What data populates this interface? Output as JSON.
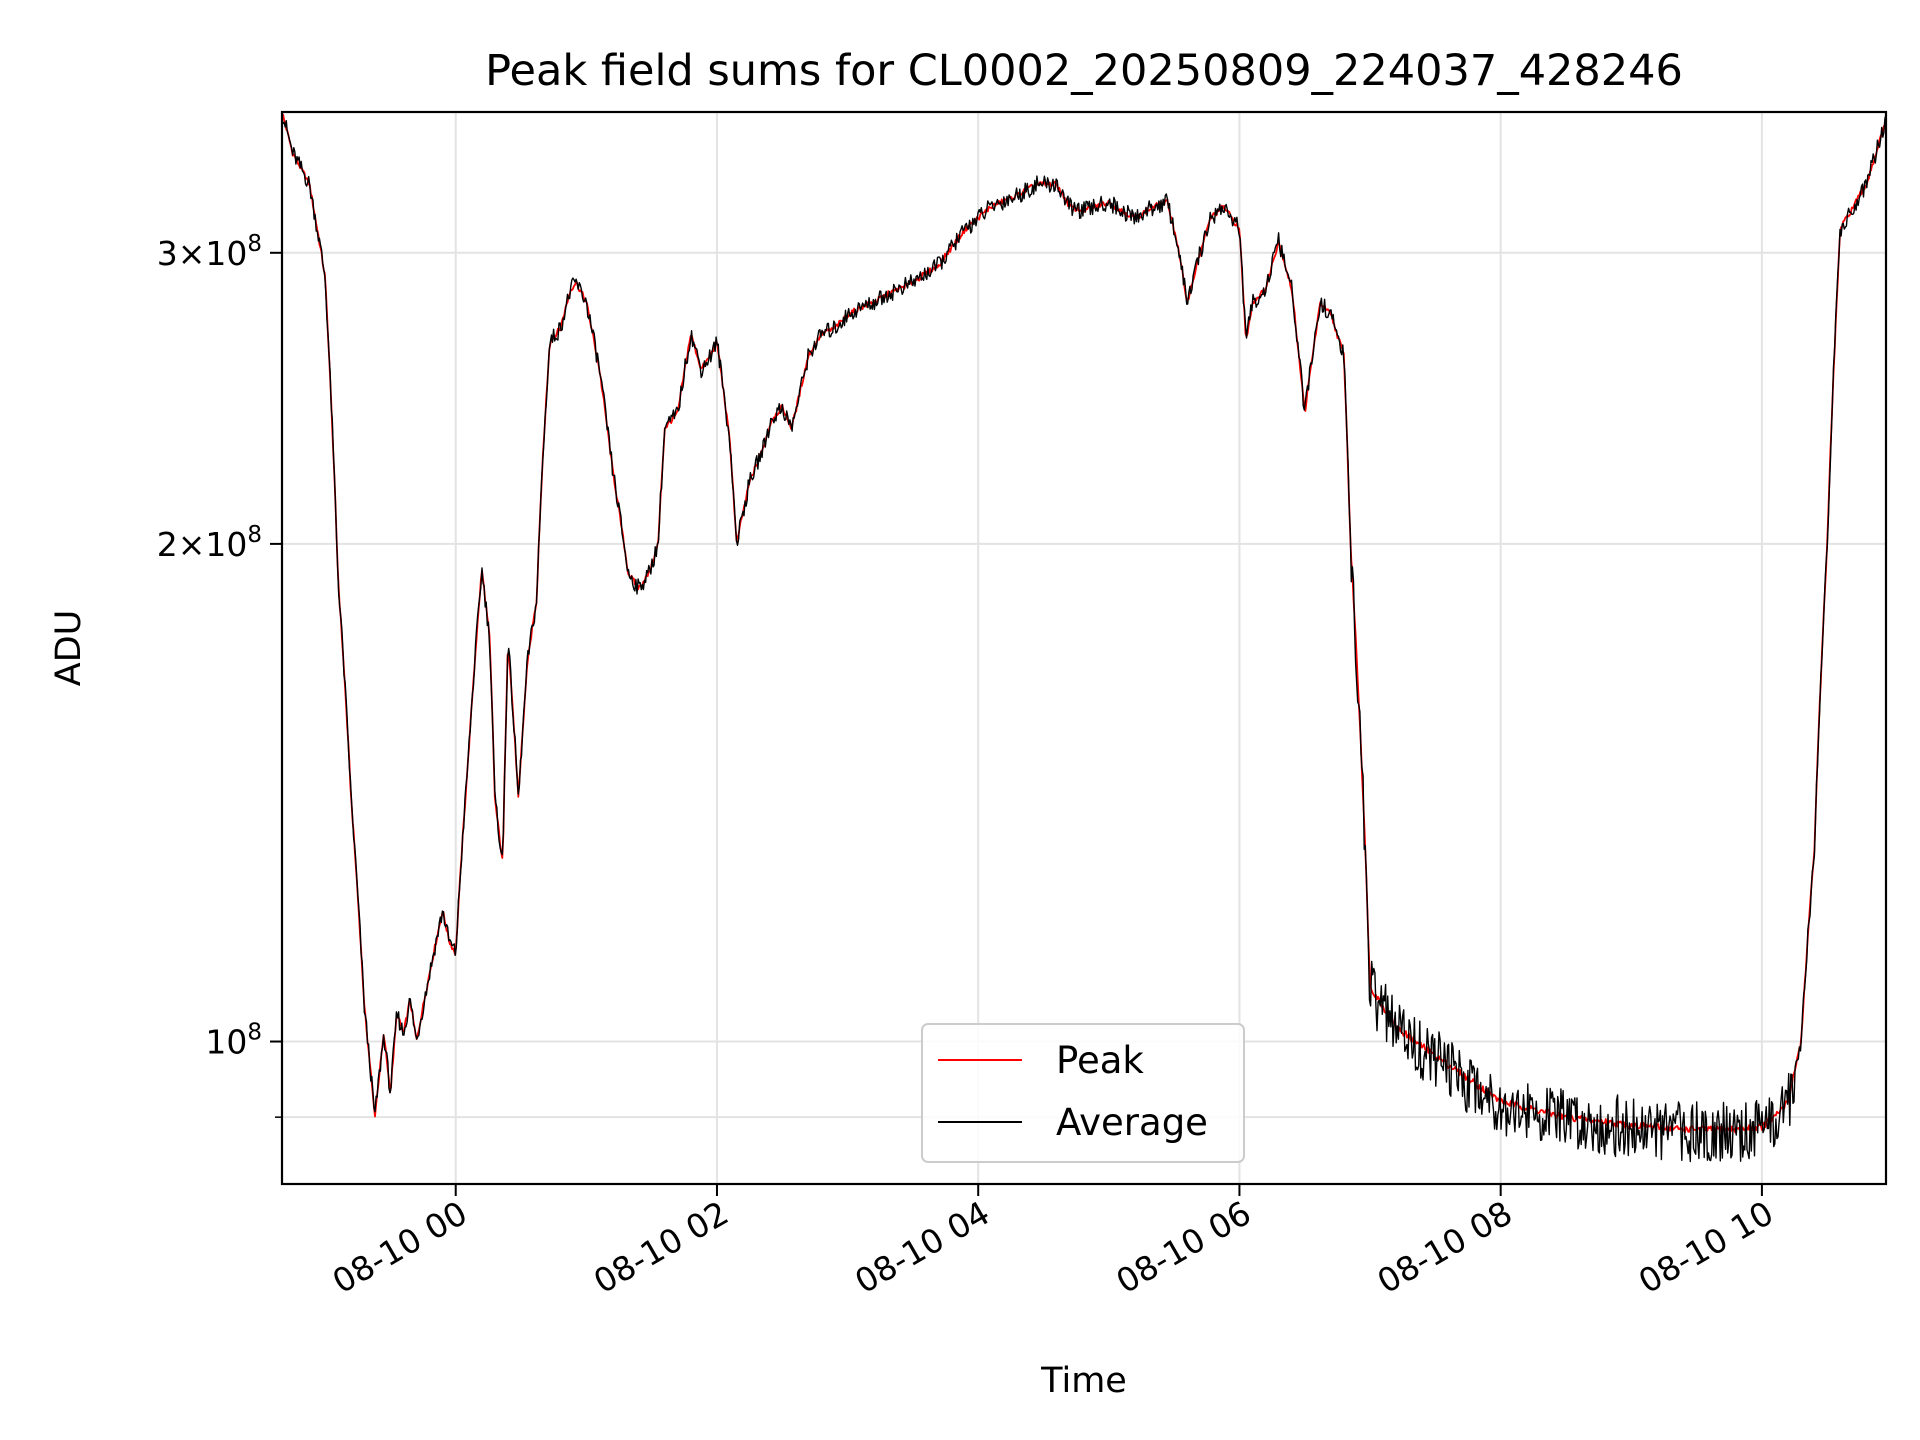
{
  "chart_data": {
    "type": "line",
    "title": "Peak field sums for CL0002_20250809_224037_428246",
    "xlabel": "Time",
    "ylabel": "ADU",
    "x_unit": "hours since 2025-08-10 00:00",
    "xlim": [
      -1.33,
      10.95
    ],
    "ylim": [
      82000000,
      365000000
    ],
    "y_scale": "log",
    "grid": true,
    "legend_position": "bottom-center",
    "x_ticks": [
      {
        "value": 0,
        "label": "08-10 00"
      },
      {
        "value": 2,
        "label": "08-10 02"
      },
      {
        "value": 4,
        "label": "08-10 04"
      },
      {
        "value": 6,
        "label": "08-10 06"
      },
      {
        "value": 8,
        "label": "08-10 08"
      },
      {
        "value": 10,
        "label": "08-10 10"
      }
    ],
    "y_ticks": [
      {
        "value": 100000000,
        "mantissa": "",
        "exponent": "8",
        "base": "10"
      },
      {
        "value": 200000000,
        "mantissa": "2",
        "exponent": "8",
        "base": "10"
      },
      {
        "value": 300000000,
        "mantissa": "3",
        "exponent": "8",
        "base": "10"
      }
    ],
    "y_minor_ticks": [
      90000000
    ],
    "series": [
      {
        "name": "Peak",
        "color": "#ff0000",
        "noise": 0.004
      },
      {
        "name": "Average",
        "color": "#000000",
        "noise": 0.012
      }
    ],
    "x": [
      -1.33,
      -1.25,
      -1.12,
      -1.0,
      -0.9,
      -0.8,
      -0.7,
      -0.62,
      -0.55,
      -0.5,
      -0.45,
      -0.4,
      -0.35,
      -0.3,
      -0.2,
      -0.1,
      -0.05,
      0.0,
      0.1,
      0.2,
      0.26,
      0.3,
      0.36,
      0.4,
      0.48,
      0.55,
      0.62,
      0.66,
      0.72,
      0.8,
      0.88,
      0.92,
      1.0,
      1.1,
      1.2,
      1.32,
      1.4,
      1.48,
      1.55,
      1.6,
      1.7,
      1.8,
      1.88,
      1.95,
      2.0,
      2.1,
      2.15,
      2.25,
      2.35,
      2.42,
      2.5,
      2.57,
      2.6,
      2.7,
      2.8,
      2.9,
      3.0,
      3.1,
      3.2,
      3.3,
      3.5,
      3.7,
      3.9,
      4.1,
      4.3,
      4.45,
      4.6,
      4.7,
      4.8,
      4.9,
      5.0,
      5.1,
      5.2,
      5.35,
      5.45,
      5.52,
      5.6,
      5.7,
      5.78,
      5.88,
      6.0,
      6.05,
      6.1,
      6.2,
      6.3,
      6.4,
      6.5,
      6.62,
      6.7,
      6.8,
      6.85,
      7.0,
      7.2,
      7.5,
      8.0,
      8.5,
      9.0,
      9.4,
      9.8,
      10.0,
      10.1,
      10.2,
      10.3,
      10.4,
      10.5,
      10.6,
      10.7,
      10.8,
      10.95
    ],
    "y": [
      365000000,
      345000000,
      330000000,
      290000000,
      190000000,
      140000000,
      105000000,
      90000000,
      101000000,
      93000000,
      104000000,
      101000000,
      106000000,
      100000000,
      110000000,
      120000000,
      115000000,
      113000000,
      150000000,
      193000000,
      175000000,
      140000000,
      128000000,
      175000000,
      140000000,
      170000000,
      185000000,
      220000000,
      265000000,
      270000000,
      285000000,
      288000000,
      280000000,
      255000000,
      222000000,
      192000000,
      188000000,
      192000000,
      200000000,
      235000000,
      240000000,
      268000000,
      255000000,
      260000000,
      265000000,
      230000000,
      200000000,
      218000000,
      228000000,
      238000000,
      242000000,
      235000000,
      240000000,
      260000000,
      268000000,
      270000000,
      275000000,
      278000000,
      280000000,
      283000000,
      288000000,
      295000000,
      310000000,
      320000000,
      325000000,
      330000000,
      330000000,
      320000000,
      318000000,
      320000000,
      322000000,
      318000000,
      315000000,
      320000000,
      322000000,
      305000000,
      280000000,
      300000000,
      315000000,
      320000000,
      310000000,
      265000000,
      280000000,
      285000000,
      305000000,
      285000000,
      240000000,
      280000000,
      275000000,
      260000000,
      200000000,
      108000000,
      102000000,
      98000000,
      92000000,
      90000000,
      89000000,
      88500000,
      88500000,
      88800000,
      90000000,
      92000000,
      100000000,
      130000000,
      200000000,
      310000000,
      320000000,
      330000000,
      360000000
    ]
  }
}
